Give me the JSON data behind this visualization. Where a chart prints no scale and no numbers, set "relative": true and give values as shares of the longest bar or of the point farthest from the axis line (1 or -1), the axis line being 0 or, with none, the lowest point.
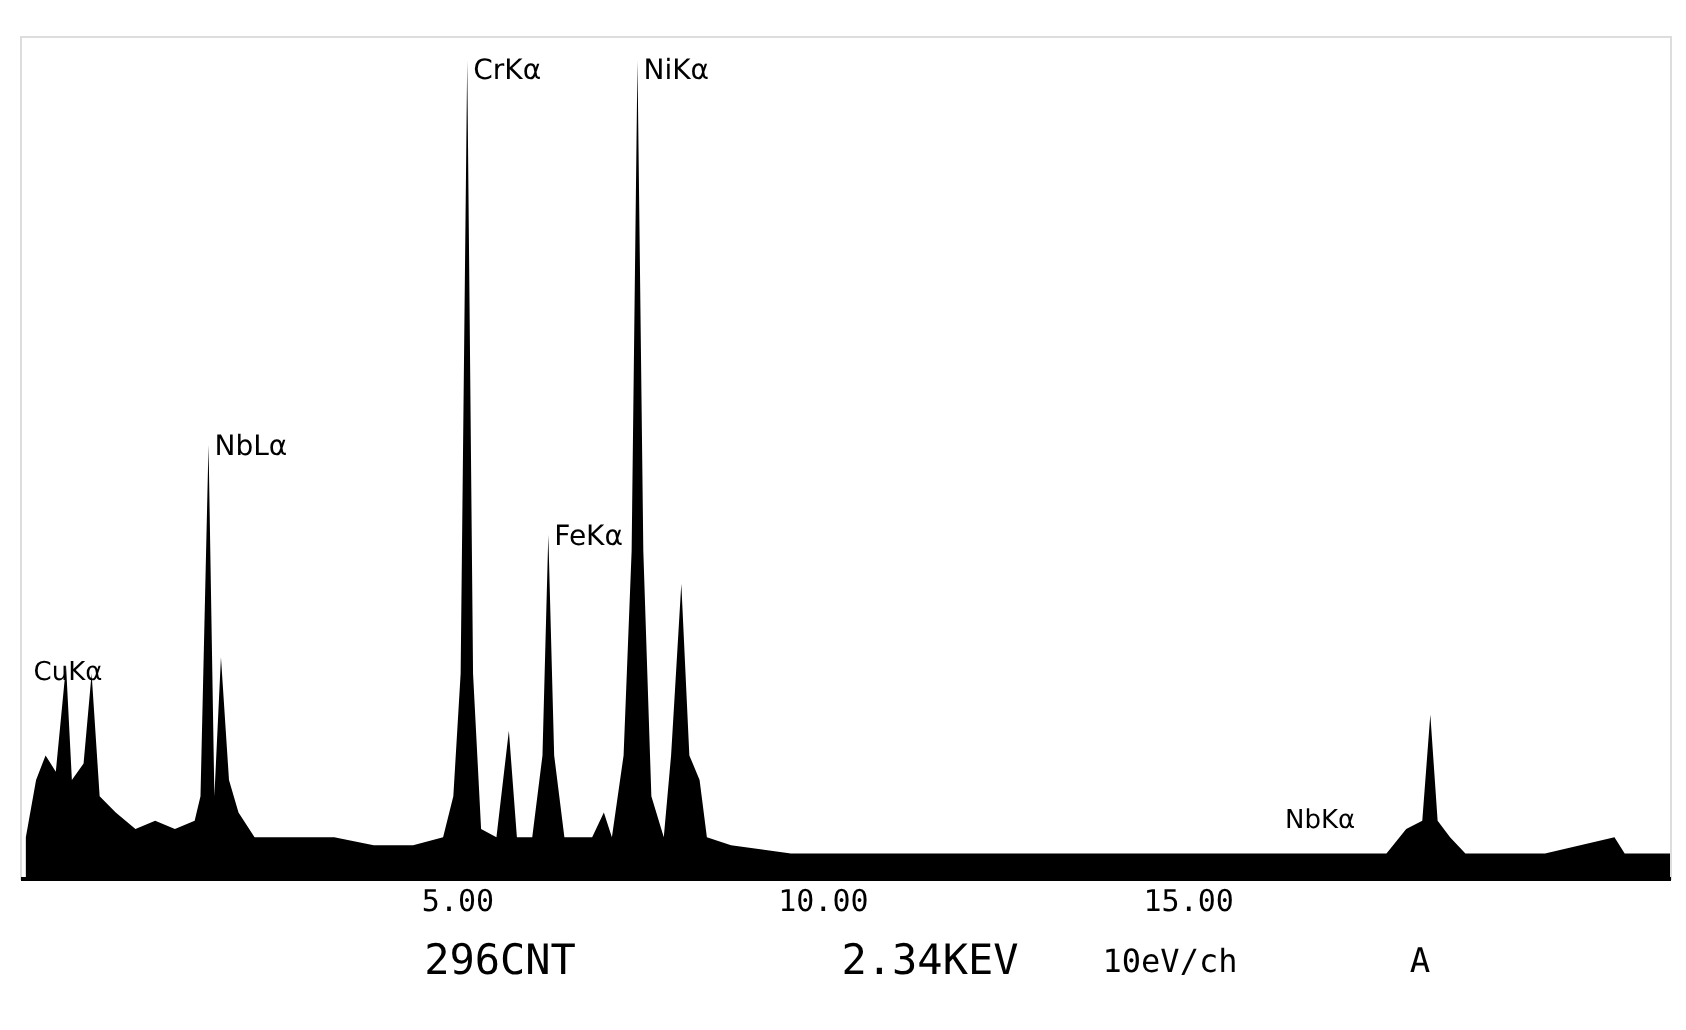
{
  "chart_data": {
    "type": "area",
    "relative": true,
    "color": "#000000",
    "grid": false,
    "xlim": [
      -0.98,
      21.6
    ],
    "xticks": [
      {
        "value": 5,
        "label": "5.00"
      },
      {
        "value": 10,
        "label": "10.00"
      },
      {
        "value": 15,
        "label": "15.00"
      }
    ],
    "x": [
      -0.9,
      -0.76,
      -0.63,
      -0.49,
      -0.35,
      -0.27,
      -0.11,
      0.0,
      0.11,
      0.33,
      0.6,
      0.87,
      1.14,
      1.41,
      1.49,
      1.6,
      1.68,
      1.77,
      1.88,
      2.01,
      2.23,
      2.77,
      3.32,
      3.86,
      4.4,
      4.81,
      4.95,
      5.05,
      5.14,
      5.22,
      5.33,
      5.54,
      5.71,
      5.82,
      6.03,
      6.17,
      6.25,
      6.33,
      6.47,
      6.85,
      7.01,
      7.12,
      7.28,
      7.39,
      7.47,
      7.55,
      7.66,
      7.83,
      7.93,
      8.07,
      8.18,
      8.32,
      8.42,
      8.75,
      9.57,
      10.92,
      12.28,
      13.64,
      15.0,
      16.36,
      17.72,
      17.99,
      18.21,
      18.32,
      18.42,
      18.59,
      18.8,
      19.89,
      20.84,
      20.98,
      21.6
    ],
    "values": [
      0.05,
      0.12,
      0.15,
      0.13,
      0.26,
      0.12,
      0.14,
      0.25,
      0.1,
      0.08,
      0.06,
      0.07,
      0.06,
      0.07,
      0.1,
      0.53,
      0.1,
      0.27,
      0.12,
      0.08,
      0.05,
      0.05,
      0.05,
      0.04,
      0.04,
      0.05,
      0.1,
      0.25,
      1.0,
      0.25,
      0.06,
      0.05,
      0.18,
      0.05,
      0.05,
      0.15,
      0.42,
      0.15,
      0.05,
      0.05,
      0.08,
      0.05,
      0.15,
      0.4,
      1.0,
      0.4,
      0.1,
      0.05,
      0.15,
      0.36,
      0.15,
      0.12,
      0.05,
      0.04,
      0.03,
      0.03,
      0.03,
      0.03,
      0.03,
      0.03,
      0.03,
      0.06,
      0.07,
      0.2,
      0.07,
      0.05,
      0.03,
      0.03,
      0.05,
      0.03,
      0.03
    ],
    "annotations": [
      {
        "text": "CrKα",
        "x": 5.14,
        "y": 0.97
      },
      {
        "text": "NiKα",
        "x": 7.47,
        "y": 0.97
      },
      {
        "text": "FeKα",
        "x": 6.25,
        "y": 0.4
      },
      {
        "text": "NbLα",
        "x": 1.6,
        "y": 0.51
      },
      "CuKα",
      "NbKα",
      "296CNT",
      "2.34KEV",
      "10eV/ch",
      "A"
    ]
  }
}
